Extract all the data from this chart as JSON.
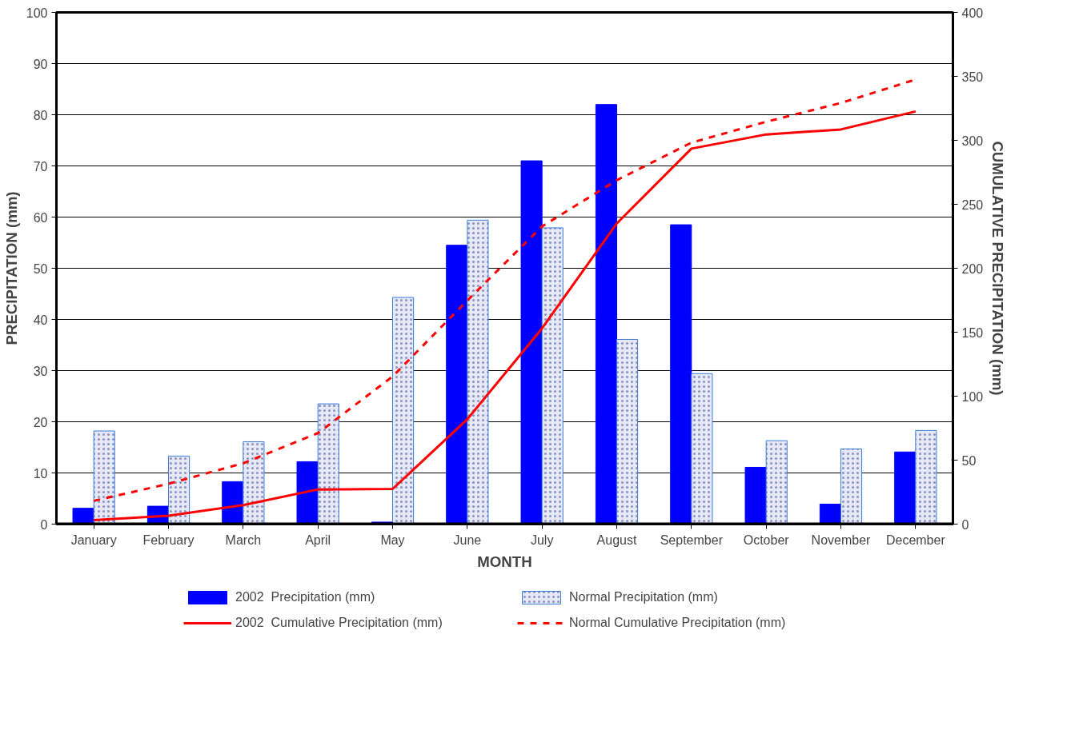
{
  "chart_data": {
    "type": "bar",
    "xlabel": "MONTH",
    "ylabel": "PRECIPITATION (mm)",
    "y2label": "CUMULATIVE PRECIPITATION (mm)",
    "categories": [
      "January",
      "February",
      "March",
      "April",
      "May",
      "June",
      "July",
      "August",
      "September",
      "October",
      "November",
      "December"
    ],
    "series": [
      {
        "name": "2002  Precipitation (mm)",
        "type": "bar",
        "color": "#0000ff",
        "values": [
          3.1,
          3.5,
          8.3,
          12.2,
          0.4,
          54.5,
          71,
          82,
          58.5,
          11.1,
          3.9,
          14.1
        ]
      },
      {
        "name": "Normal Precipitation (mm)",
        "type": "bar",
        "color": "#e6e8f5",
        "values": [
          18.2,
          13.3,
          16.1,
          23.5,
          44.3,
          59.4,
          57.9,
          36.1,
          29.4,
          16.3,
          14.7,
          18.3
        ]
      },
      {
        "name": "2002  Cumulative Precipitation (mm)",
        "type": "line",
        "axis": "y2",
        "color": "#ff0000",
        "line_style": "solid",
        "values": [
          3.1,
          6.6,
          14.9,
          27.1,
          27.5,
          82,
          153,
          235,
          293.5,
          304.6,
          308.5,
          322.6
        ]
      },
      {
        "name": "Normal Cumulative Precipitation (mm)",
        "type": "line",
        "axis": "y2",
        "color": "#ff0000",
        "line_style": "dashed",
        "values": [
          18.2,
          31.5,
          47.6,
          71.1,
          115.4,
          174.8,
          232.7,
          268.8,
          298.2,
          314.5,
          329.2,
          347.5
        ]
      }
    ],
    "ylim": [
      0,
      100
    ],
    "yticks": [
      0,
      10,
      20,
      30,
      40,
      50,
      60,
      70,
      80,
      90,
      100
    ],
    "y2lim": [
      0,
      400
    ],
    "y2ticks": [
      0,
      50,
      100,
      150,
      200,
      250,
      300,
      350,
      400
    ],
    "grid": "y",
    "legend": "bottom",
    "marker": "none"
  }
}
